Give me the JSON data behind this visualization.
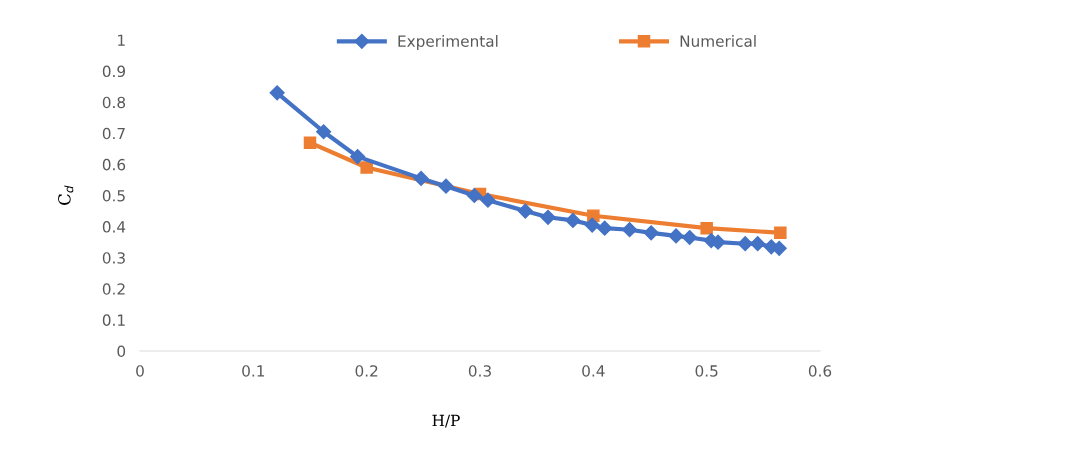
{
  "chart_data": {
    "type": "line",
    "xlabel": "H/P",
    "ylabel": "C$_{d}$",
    "xlim": [
      0,
      0.6
    ],
    "xticks": [
      0,
      0.1,
      0.2,
      0.3,
      0.4,
      0.5,
      0.6
    ],
    "ylim": [
      0,
      1
    ],
    "yticks": [
      0,
      0.1,
      0.2,
      0.3,
      0.4,
      0.5,
      0.6,
      0.7,
      0.8,
      0.9,
      1
    ],
    "grid": false,
    "legend": "top",
    "series": [
      {
        "name": "Experimental",
        "color": "#4472c4",
        "marker": "diamond",
        "x": [
          0.121,
          0.162,
          0.192,
          0.248,
          0.27,
          0.295,
          0.307,
          0.34,
          0.36,
          0.382,
          0.399,
          0.41,
          0.432,
          0.451,
          0.473,
          0.485,
          0.504,
          0.51,
          0.534,
          0.545,
          0.557,
          0.564
        ],
        "values": [
          0.83,
          0.705,
          0.625,
          0.555,
          0.53,
          0.5,
          0.485,
          0.45,
          0.43,
          0.42,
          0.405,
          0.395,
          0.39,
          0.38,
          0.37,
          0.365,
          0.355,
          0.35,
          0.345,
          0.345,
          0.335,
          0.33
        ]
      },
      {
        "name": "Numerical",
        "color": "#ed7d31",
        "marker": "square",
        "x": [
          0.15,
          0.2,
          0.3,
          0.4,
          0.5,
          0.565
        ],
        "values": [
          0.67,
          0.59,
          0.505,
          0.435,
          0.395,
          0.38
        ]
      }
    ]
  }
}
